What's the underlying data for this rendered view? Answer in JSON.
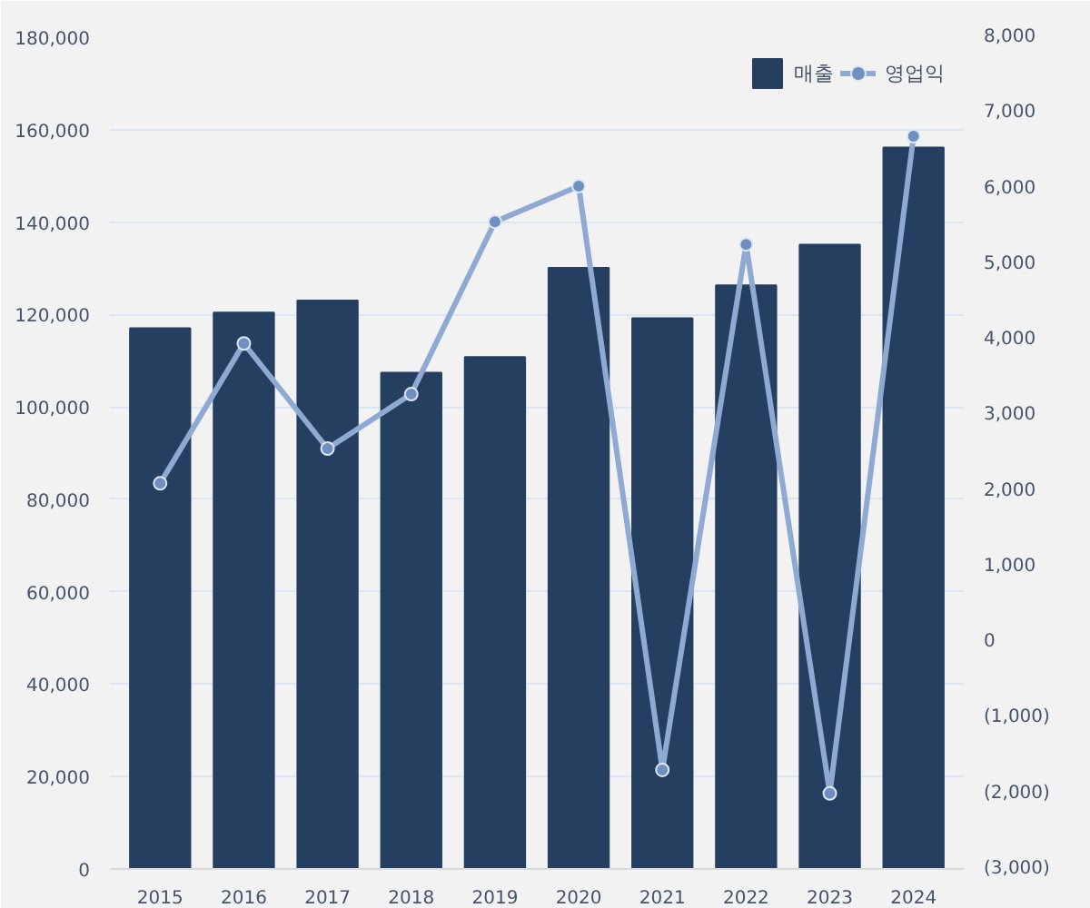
{
  "chart_data": {
    "type": "bar",
    "categories": [
      "2015",
      "2016",
      "2017",
      "2018",
      "2019",
      "2020",
      "2021",
      "2022",
      "2023",
      "2024"
    ],
    "series": [
      {
        "name": "매출",
        "color": "#243f60",
        "values": [
          117000,
          120400,
          123000,
          107400,
          110800,
          130100,
          119200,
          126300,
          135100,
          156100
        ]
      },
      {
        "name": "영업익",
        "type": "line",
        "axis": "y2",
        "color": "#8eaad2",
        "values": [
          2100,
          3950,
          2560,
          3280,
          5560,
          6030,
          -1690,
          5260,
          -2000,
          6690
        ]
      }
    ],
    "ylim": [
      0,
      180000
    ],
    "yticks": [
      {
        "value": 0,
        "label": "0"
      },
      {
        "value": 20000,
        "label": "20,000"
      },
      {
        "value": 40000,
        "label": "40,000"
      },
      {
        "value": 60000,
        "label": "60,000"
      },
      {
        "value": 80000,
        "label": "80,000"
      },
      {
        "value": 100000,
        "label": "100,000"
      },
      {
        "value": 120000,
        "label": "120,000"
      },
      {
        "value": 140000,
        "label": "140,000"
      },
      {
        "value": 160000,
        "label": "160,000"
      },
      {
        "value": 180000,
        "label": "180,000"
      }
    ],
    "y2lim": [
      -3000,
      8000
    ],
    "y2ticks": [
      {
        "value": -3000,
        "label": "(3,000)"
      },
      {
        "value": -2000,
        "label": "(2,000)"
      },
      {
        "value": -1000,
        "label": "(1,000)"
      },
      {
        "value": 0,
        "label": "0"
      },
      {
        "value": 1000,
        "label": "1,000"
      },
      {
        "value": 2000,
        "label": "2,000"
      },
      {
        "value": 3000,
        "label": "3,000"
      },
      {
        "value": 4000,
        "label": "4,000"
      },
      {
        "value": 5000,
        "label": "5,000"
      },
      {
        "value": 6000,
        "label": "6,000"
      },
      {
        "value": 7000,
        "label": "7,000"
      },
      {
        "value": 8000,
        "label": "8,000"
      }
    ],
    "grid": "y",
    "legend": "top right",
    "marker": "circle"
  }
}
